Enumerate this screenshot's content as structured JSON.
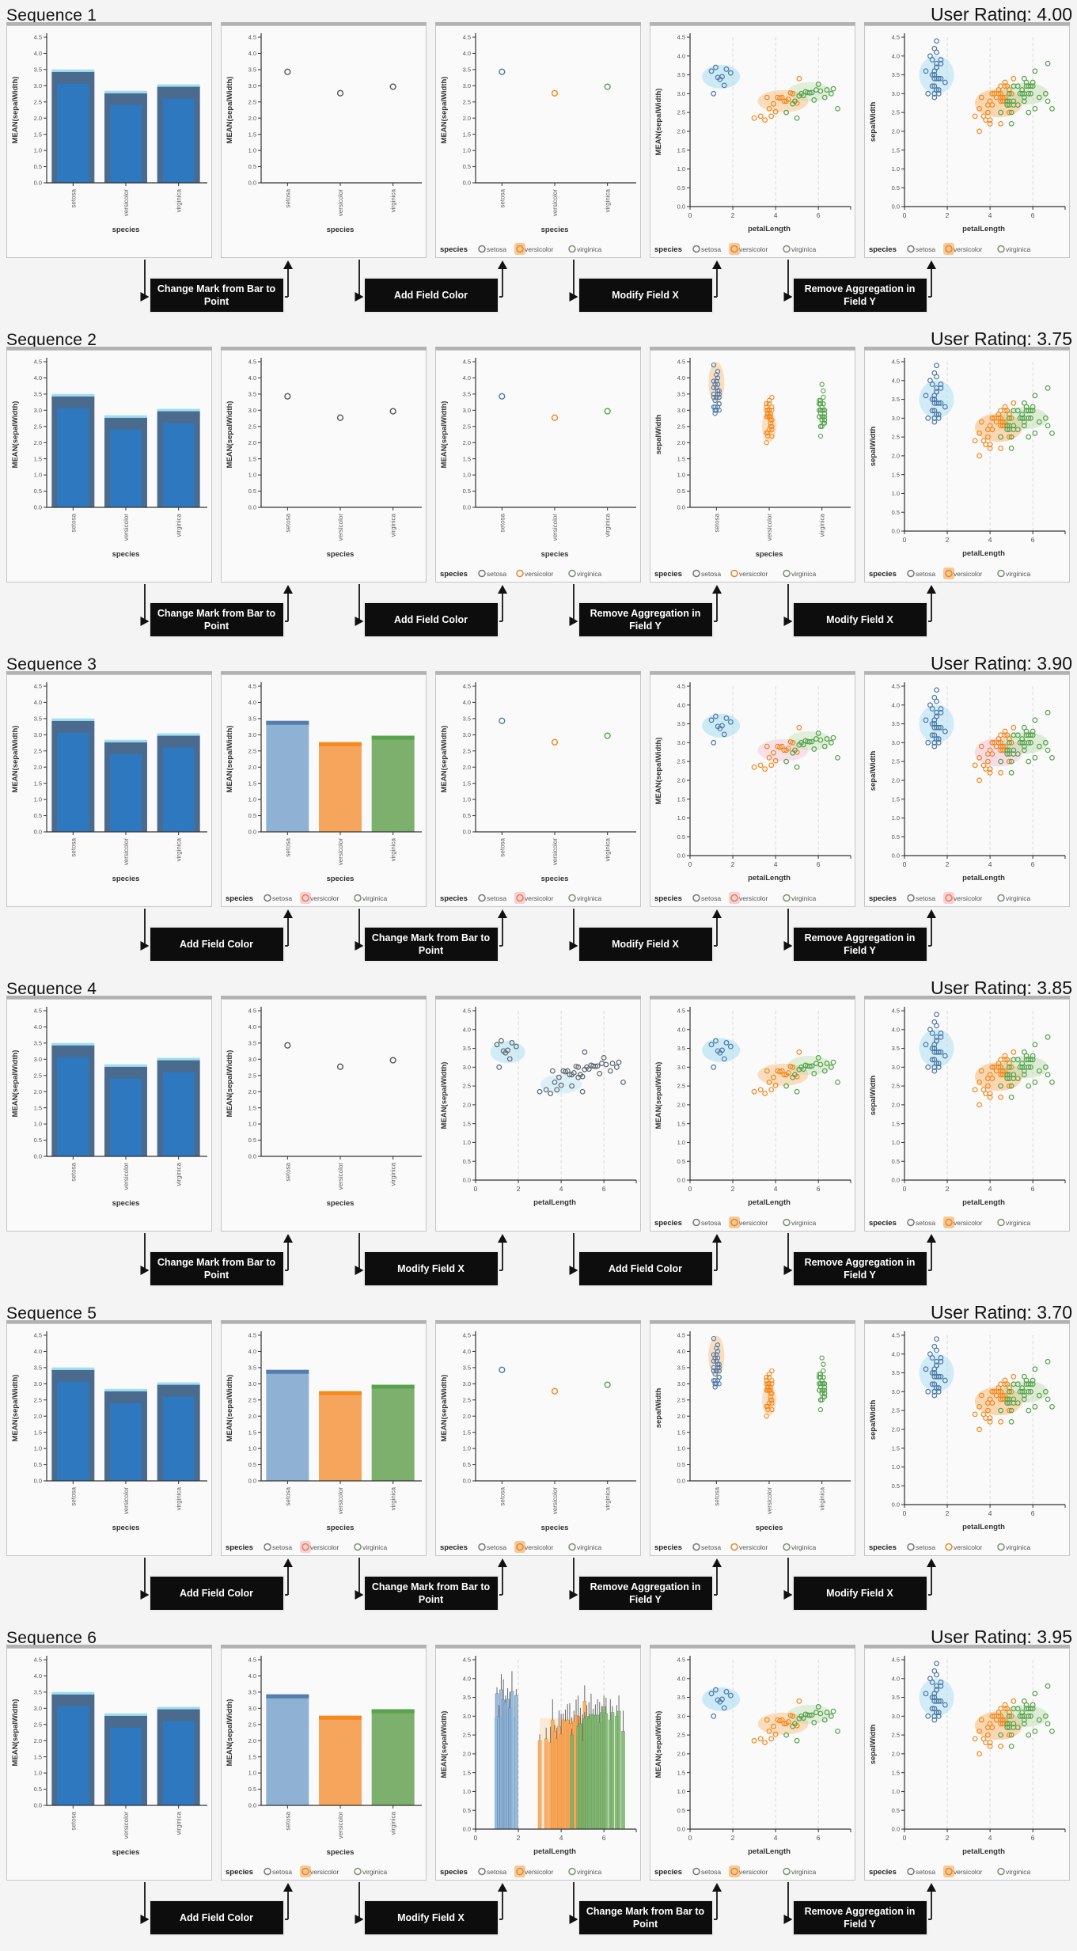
{
  "colors": {
    "point": {
      "setosa": "#4c78a8",
      "versicolor": "#f58518",
      "virginica": "#54a24b"
    },
    "bar_light": {
      "setosa": "#8fb2d4",
      "versicolor": "#f5a65c",
      "virginica": "#7db06c"
    },
    "bar_dark_core": "#2e78bf",
    "bar_dark_edge": "#4a6b8e",
    "bar_top_accent": "#9edff2",
    "accent_cyan": "#aee0f2",
    "accent_orange": "#f8c083",
    "accent_pink": "#f6c6dc",
    "accent_green": "#bcdcab",
    "gray_point": "#5a6570",
    "legend_icon_gray": "#777777",
    "legend_icon_orange": "#e8872b",
    "legend_icon_green": "#7c8f74",
    "box_bg": "#0d0d0d",
    "box_text": "#ffffff"
  },
  "chart_data": {
    "type": "small-multiples",
    "description": "Six sequences of chart transformations on the iris dataset, each rated by users",
    "y_domain": [
      0,
      4.5
    ],
    "y_tick_step": 0.5,
    "x_quant_ticks": [
      0,
      2,
      4,
      6
    ],
    "x_quant_domain": [
      0,
      7.4
    ],
    "categories": [
      "setosa",
      "versicolor",
      "virginica"
    ],
    "axis_labels": {
      "y_mean": "MEAN(sepalWidth)",
      "y_raw": "sepalWidth",
      "x_species": "species",
      "x_petal": "petalLength"
    },
    "legend_title": "species",
    "legend_items": [
      "setosa",
      "versicolor",
      "virginica"
    ],
    "bar_means": {
      "setosa": 3.43,
      "versicolor": 2.77,
      "virginica": 2.97
    },
    "points": {
      "setosa": [
        [
          1.4,
          3.5
        ],
        [
          1.4,
          3.0
        ],
        [
          1.3,
          3.2
        ],
        [
          1.5,
          3.1
        ],
        [
          1.4,
          3.6
        ],
        [
          1.7,
          3.9
        ],
        [
          1.4,
          3.4
        ],
        [
          1.5,
          3.4
        ],
        [
          1.4,
          2.9
        ],
        [
          1.5,
          3.1
        ],
        [
          1.5,
          3.7
        ],
        [
          1.6,
          3.4
        ],
        [
          1.4,
          3.0
        ],
        [
          1.1,
          3.0
        ],
        [
          1.2,
          4.0
        ],
        [
          1.5,
          4.4
        ],
        [
          1.3,
          3.9
        ],
        [
          1.4,
          3.5
        ],
        [
          1.7,
          3.8
        ],
        [
          1.5,
          3.8
        ],
        [
          1.7,
          3.4
        ],
        [
          1.5,
          3.7
        ],
        [
          1.0,
          3.6
        ],
        [
          1.9,
          3.3
        ],
        [
          1.4,
          4.2
        ],
        [
          1.6,
          3.1
        ],
        [
          1.5,
          4.1
        ],
        [
          1.4,
          3.2
        ],
        [
          1.6,
          3.0
        ],
        [
          1.3,
          3.5
        ]
      ],
      "versicolor": [
        [
          4.7,
          3.2
        ],
        [
          4.5,
          3.2
        ],
        [
          4.9,
          3.1
        ],
        [
          4.0,
          2.3
        ],
        [
          4.6,
          2.8
        ],
        [
          4.5,
          2.8
        ],
        [
          4.7,
          3.3
        ],
        [
          3.3,
          2.4
        ],
        [
          4.6,
          2.9
        ],
        [
          3.9,
          2.7
        ],
        [
          3.5,
          2.0
        ],
        [
          4.2,
          3.0
        ],
        [
          4.0,
          2.2
        ],
        [
          4.7,
          2.9
        ],
        [
          3.6,
          2.9
        ],
        [
          4.4,
          3.1
        ],
        [
          4.5,
          3.0
        ],
        [
          4.1,
          2.7
        ],
        [
          4.5,
          2.2
        ],
        [
          3.9,
          2.5
        ],
        [
          4.8,
          3.2
        ],
        [
          4.0,
          2.8
        ],
        [
          4.9,
          2.5
        ],
        [
          4.7,
          2.8
        ],
        [
          4.3,
          2.9
        ],
        [
          4.4,
          3.0
        ],
        [
          4.8,
          2.8
        ],
        [
          5.0,
          3.0
        ],
        [
          4.5,
          2.9
        ],
        [
          3.5,
          2.6
        ],
        [
          3.8,
          2.3
        ],
        [
          3.7,
          2.4
        ],
        [
          5.1,
          3.4
        ],
        [
          4.1,
          3.0
        ]
      ],
      "virginica": [
        [
          6.0,
          3.3
        ],
        [
          5.1,
          2.7
        ],
        [
          5.9,
          3.0
        ],
        [
          5.6,
          2.9
        ],
        [
          5.8,
          3.0
        ],
        [
          6.6,
          3.0
        ],
        [
          4.5,
          2.5
        ],
        [
          6.3,
          2.9
        ],
        [
          5.8,
          2.5
        ],
        [
          6.1,
          3.6
        ],
        [
          5.1,
          3.2
        ],
        [
          5.3,
          2.7
        ],
        [
          5.5,
          3.0
        ],
        [
          5.0,
          2.5
        ],
        [
          5.1,
          2.8
        ],
        [
          5.3,
          3.2
        ],
        [
          6.7,
          3.8
        ],
        [
          6.9,
          2.6
        ],
        [
          5.0,
          2.2
        ],
        [
          5.7,
          3.2
        ],
        [
          4.9,
          2.8
        ],
        [
          6.7,
          2.8
        ],
        [
          4.9,
          2.7
        ],
        [
          5.7,
          3.3
        ],
        [
          6.0,
          3.2
        ],
        [
          4.8,
          2.8
        ],
        [
          4.9,
          3.0
        ],
        [
          5.6,
          2.8
        ],
        [
          5.8,
          3.2
        ],
        [
          6.1,
          2.6
        ],
        [
          5.6,
          3.0
        ],
        [
          5.5,
          3.1
        ],
        [
          4.8,
          2.7
        ],
        [
          5.4,
          3.0
        ],
        [
          5.6,
          3.4
        ],
        [
          5.9,
          3.2
        ]
      ]
    },
    "agg": {
      "setosa": [
        [
          1.0,
          3.6
        ],
        [
          1.1,
          3.0
        ],
        [
          1.2,
          3.7
        ],
        [
          1.3,
          3.43
        ],
        [
          1.4,
          3.38
        ],
        [
          1.5,
          3.45
        ],
        [
          1.6,
          3.22
        ],
        [
          1.7,
          3.65
        ],
        [
          1.9,
          3.55
        ]
      ],
      "versicolor": [
        [
          3.0,
          2.35
        ],
        [
          3.3,
          2.4
        ],
        [
          3.5,
          2.3
        ],
        [
          3.6,
          2.9
        ],
        [
          3.7,
          2.6
        ],
        [
          3.8,
          2.4
        ],
        [
          3.9,
          2.73
        ],
        [
          4.0,
          2.52
        ],
        [
          4.1,
          2.9
        ],
        [
          4.2,
          2.88
        ],
        [
          4.3,
          2.9
        ],
        [
          4.4,
          2.8
        ],
        [
          4.5,
          2.8
        ],
        [
          4.6,
          2.85
        ],
        [
          4.7,
          3.02
        ],
        [
          4.8,
          3.0
        ],
        [
          4.9,
          2.8
        ],
        [
          5.0,
          2.75
        ],
        [
          5.1,
          3.4
        ]
      ],
      "virginica": [
        [
          4.5,
          2.5
        ],
        [
          4.8,
          2.73
        ],
        [
          4.9,
          2.8
        ],
        [
          5.0,
          2.35
        ],
        [
          5.1,
          2.94
        ],
        [
          5.2,
          3.0
        ],
        [
          5.3,
          2.95
        ],
        [
          5.4,
          3.05
        ],
        [
          5.5,
          3.03
        ],
        [
          5.6,
          3.02
        ],
        [
          5.7,
          3.03
        ],
        [
          5.8,
          2.83
        ],
        [
          5.9,
          3.1
        ],
        [
          6.0,
          3.25
        ],
        [
          6.1,
          3.07
        ],
        [
          6.3,
          2.9
        ],
        [
          6.4,
          3.1
        ],
        [
          6.6,
          3.0
        ],
        [
          6.7,
          3.13
        ],
        [
          6.9,
          2.6
        ]
      ]
    },
    "sequences": [
      {
        "title": "Sequence 1",
        "rating_label": "User Rating: 4.00",
        "transitions": [
          "Change Mark from Bar to Point",
          "Add Field Color",
          "Modify Field X",
          "Remove Aggregation in Field Y"
        ],
        "charts": [
          {
            "type": "bar",
            "colored": false,
            "x": "species",
            "y": "mean",
            "legend": false,
            "hl": null
          },
          {
            "type": "point",
            "colored": false,
            "x": "species",
            "y": "mean",
            "legend": false,
            "hl": null
          },
          {
            "type": "point",
            "colored": true,
            "x": "species",
            "y": "mean",
            "legend": true,
            "hl": "orange"
          },
          {
            "type": "agg",
            "colored": true,
            "x": "petalLength",
            "y": "mean",
            "legend": true,
            "hl": "orange"
          },
          {
            "type": "scatter",
            "colored": true,
            "x": "petalLength",
            "y": "raw",
            "legend": true,
            "hl": "orange"
          }
        ]
      },
      {
        "title": "Sequence 2",
        "rating_label": "User Rating: 3.75",
        "transitions": [
          "Change Mark from Bar to Point",
          "Add Field Color",
          "Remove Aggregation in Field Y",
          "Modify Field X"
        ],
        "charts": [
          {
            "type": "bar",
            "colored": false,
            "x": "species",
            "y": "mean",
            "legend": false,
            "hl": null
          },
          {
            "type": "point",
            "colored": false,
            "x": "species",
            "y": "mean",
            "legend": false,
            "hl": null
          },
          {
            "type": "point",
            "colored": true,
            "x": "species",
            "y": "mean",
            "legend": true,
            "hl": null
          },
          {
            "type": "strip",
            "colored": true,
            "x": "species",
            "y": "raw",
            "legend": true,
            "hl": null
          },
          {
            "type": "scatter",
            "colored": true,
            "x": "petalLength",
            "y": "raw",
            "legend": true,
            "hl": "orange"
          }
        ]
      },
      {
        "title": "Sequence 3",
        "rating_label": "User Rating: 3.90",
        "transitions": [
          "Add Field Color",
          "Change Mark from Bar to Point",
          "Modify Field X",
          "Remove Aggregation in Field Y"
        ],
        "charts": [
          {
            "type": "bar",
            "colored": false,
            "x": "species",
            "y": "mean",
            "legend": false,
            "hl": null
          },
          {
            "type": "bar",
            "colored": true,
            "x": "species",
            "y": "mean",
            "legend": true,
            "hl": "pink"
          },
          {
            "type": "point",
            "colored": true,
            "x": "species",
            "y": "mean",
            "legend": true,
            "hl": "pink"
          },
          {
            "type": "agg",
            "colored": true,
            "x": "petalLength",
            "y": "mean",
            "legend": true,
            "hl": "pink"
          },
          {
            "type": "scatter",
            "colored": true,
            "x": "petalLength",
            "y": "raw",
            "legend": true,
            "hl": "pink"
          }
        ]
      },
      {
        "title": "Sequence 4",
        "rating_label": "User Rating: 3.85",
        "transitions": [
          "Change Mark from Bar to Point",
          "Modify Field X",
          "Add Field Color",
          "Remove Aggregation in Field Y"
        ],
        "charts": [
          {
            "type": "bar",
            "colored": false,
            "x": "species",
            "y": "mean",
            "legend": false,
            "hl": null
          },
          {
            "type": "point",
            "colored": false,
            "x": "species",
            "y": "mean",
            "legend": false,
            "hl": null
          },
          {
            "type": "agg",
            "colored": false,
            "x": "petalLength",
            "y": "mean",
            "legend": false,
            "hl": null
          },
          {
            "type": "agg",
            "colored": true,
            "x": "petalLength",
            "y": "mean",
            "legend": true,
            "hl": "orange"
          },
          {
            "type": "scatter",
            "colored": true,
            "x": "petalLength",
            "y": "raw",
            "legend": true,
            "hl": "orange"
          }
        ]
      },
      {
        "title": "Sequence 5",
        "rating_label": "User Rating: 3.70",
        "transitions": [
          "Add Field Color",
          "Change Mark from Bar to Point",
          "Remove Aggregation in Field Y",
          "Modify Field X"
        ],
        "charts": [
          {
            "type": "bar",
            "colored": false,
            "x": "species",
            "y": "mean",
            "legend": false,
            "hl": null
          },
          {
            "type": "bar",
            "colored": true,
            "x": "species",
            "y": "mean",
            "legend": true,
            "hl": "pink"
          },
          {
            "type": "point",
            "colored": true,
            "x": "species",
            "y": "mean",
            "legend": true,
            "hl": "orange"
          },
          {
            "type": "strip",
            "colored": true,
            "x": "species",
            "y": "raw",
            "legend": true,
            "hl": null
          },
          {
            "type": "scatter",
            "colored": true,
            "x": "petalLength",
            "y": "raw",
            "legend": true,
            "hl": null
          }
        ]
      },
      {
        "title": "Sequence 6",
        "rating_label": "User Rating: 3.95",
        "transitions": [
          "Add Field Color",
          "Modify Field X",
          "Change Mark from Bar to Point",
          "Remove Aggregation in Field Y"
        ],
        "charts": [
          {
            "type": "bar",
            "colored": false,
            "x": "species",
            "y": "mean",
            "legend": false,
            "hl": null
          },
          {
            "type": "bar",
            "colored": true,
            "x": "species",
            "y": "mean",
            "legend": true,
            "hl": "orange"
          },
          {
            "type": "barq",
            "colored": true,
            "x": "petalLength",
            "y": "mean",
            "legend": true,
            "hl": "orange"
          },
          {
            "type": "agg",
            "colored": true,
            "x": "petalLength",
            "y": "mean",
            "legend": true,
            "hl": "orange"
          },
          {
            "type": "scatter",
            "colored": true,
            "x": "petalLength",
            "y": "raw",
            "legend": true,
            "hl": "orange"
          }
        ]
      }
    ]
  }
}
